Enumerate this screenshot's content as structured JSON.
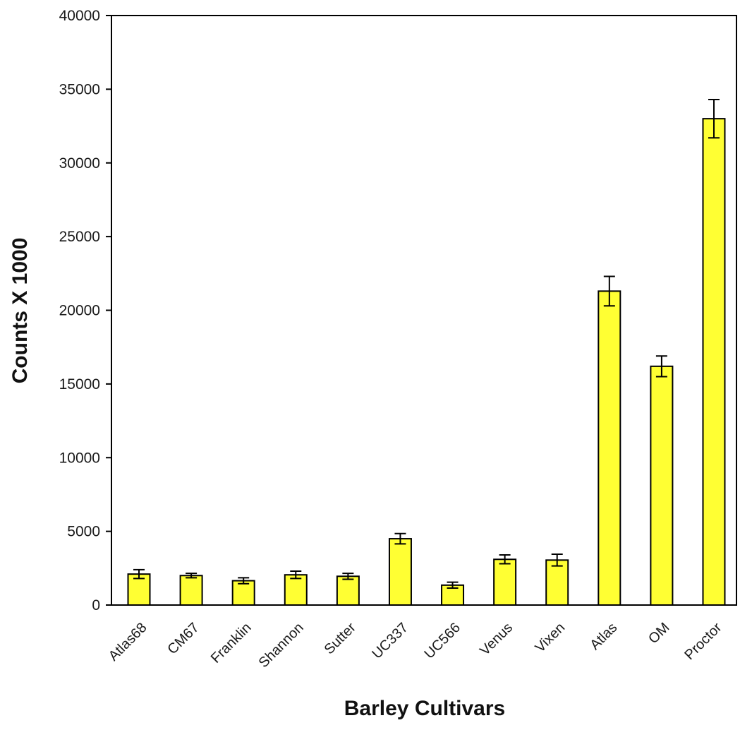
{
  "chart_data": {
    "type": "bar",
    "title": "",
    "xlabel": "Barley Cultivars",
    "ylabel": "Counts X 1000",
    "ylim": [
      0,
      40000
    ],
    "yticks": [
      0,
      5000,
      10000,
      15000,
      20000,
      25000,
      30000,
      35000,
      40000
    ],
    "yticks_labels": [
      "0",
      "5000",
      "10000",
      "15000",
      "20000",
      "25000",
      "30000",
      "35000",
      "40000"
    ],
    "grid": false,
    "legend": "none",
    "categories": [
      "Atlas68",
      "CM67",
      "Franklin",
      "Shannon",
      "Sutter",
      "UC337",
      "UC566",
      "Venus",
      "Vixen",
      "Atlas",
      "OM",
      "Proctor"
    ],
    "values": [
      2100,
      2000,
      1650,
      2050,
      1950,
      4500,
      1350,
      3100,
      3050,
      21300,
      16200,
      33000
    ],
    "errors": [
      300,
      150,
      200,
      250,
      200,
      350,
      200,
      300,
      400,
      1000,
      700,
      1300
    ],
    "colors": {
      "bar": "#ffff33",
      "bar_border": "#000000",
      "axis": "#000000"
    }
  }
}
